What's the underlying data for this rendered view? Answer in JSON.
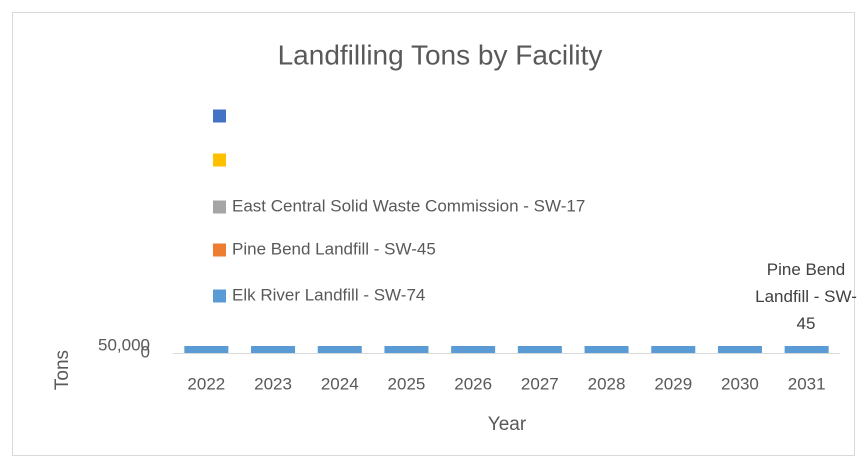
{
  "chart_data": {
    "type": "bar",
    "stacked": true,
    "title": "Landfilling Tons by Facility",
    "x_label": "Year",
    "y_label": "Tons",
    "categories": [
      "2022",
      "2023",
      "2024",
      "2025",
      "2026",
      "2027",
      "2028",
      "2029",
      "2030",
      "2031"
    ],
    "series": [
      {
        "name": "Elk River Landfill - SW-74",
        "color": "#5b9bd5",
        "values": [
          50000,
          50000,
          50000,
          50000,
          50000,
          50000,
          50000,
          50000,
          50000,
          50000
        ]
      },
      {
        "name": "Pine Bend Landfill  - SW-45",
        "color": "#ed7d31",
        "values": [
          0,
          0,
          0,
          0,
          0,
          0,
          0,
          0,
          0,
          0
        ]
      },
      {
        "name": "East Central Solid Waste Commission - SW-17",
        "color": "#a5a5a5",
        "values": [
          0,
          0,
          0,
          0,
          0,
          0,
          0,
          0,
          0,
          0
        ]
      },
      {
        "color": "#ffc000",
        "values": [
          0,
          0,
          0,
          0,
          0,
          0,
          0,
          0,
          0,
          0
        ]
      },
      {
        "color": "#4472c4",
        "values": [
          0,
          0,
          0,
          0,
          0,
          0,
          0,
          0,
          0,
          0
        ]
      }
    ],
    "ylim": [
      0,
      50000
    ],
    "yticks": [
      0,
      {
        "value": 50000,
        "label": "50,000"
      }
    ],
    "grid": false,
    "annotation": "Pine Bend Landfill  - SW-45"
  }
}
